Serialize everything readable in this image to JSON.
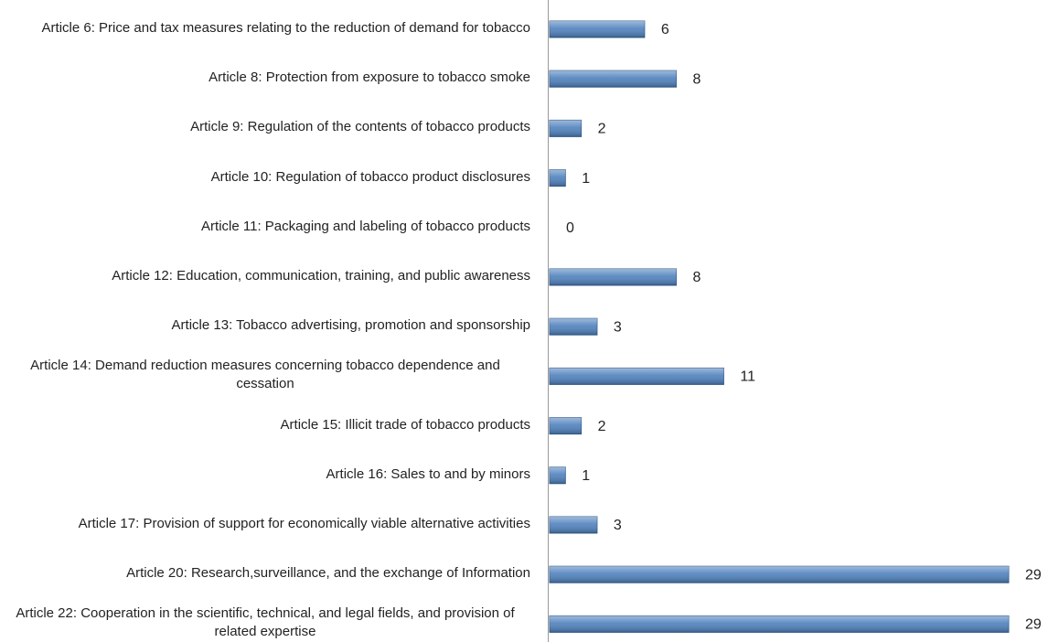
{
  "chart_data": {
    "type": "hbar",
    "categories": [
      "Article 6: Price and tax measures relating to the reduction of demand for tobacco",
      "Article 8: Protection from exposure to tobacco smoke",
      "Article 9: Regulation of the contents of tobacco products",
      "Article 10: Regulation of tobacco product disclosures",
      "Article 11: Packaging and labeling of tobacco products",
      "Article 12: Education, communication, training, and public awareness",
      "Article 13: Tobacco advertising, promotion and sponsorship",
      "Article 14: Demand reduction measures concerning tobacco dependence and cessation",
      "Article 15: Illicit trade of tobacco products",
      "Article 16: Sales to and by minors",
      "Article 17: Provision of support for economically viable alternative activities",
      "Article 20: Research,surveillance, and the exchange of Information",
      "Article 22: Cooperation in the scientific, technical, and legal fields, and provision of related expertise"
    ],
    "values": [
      6,
      8,
      2,
      1,
      0,
      8,
      3,
      11,
      2,
      1,
      3,
      29,
      29
    ],
    "color": "#4f81bd"
  }
}
